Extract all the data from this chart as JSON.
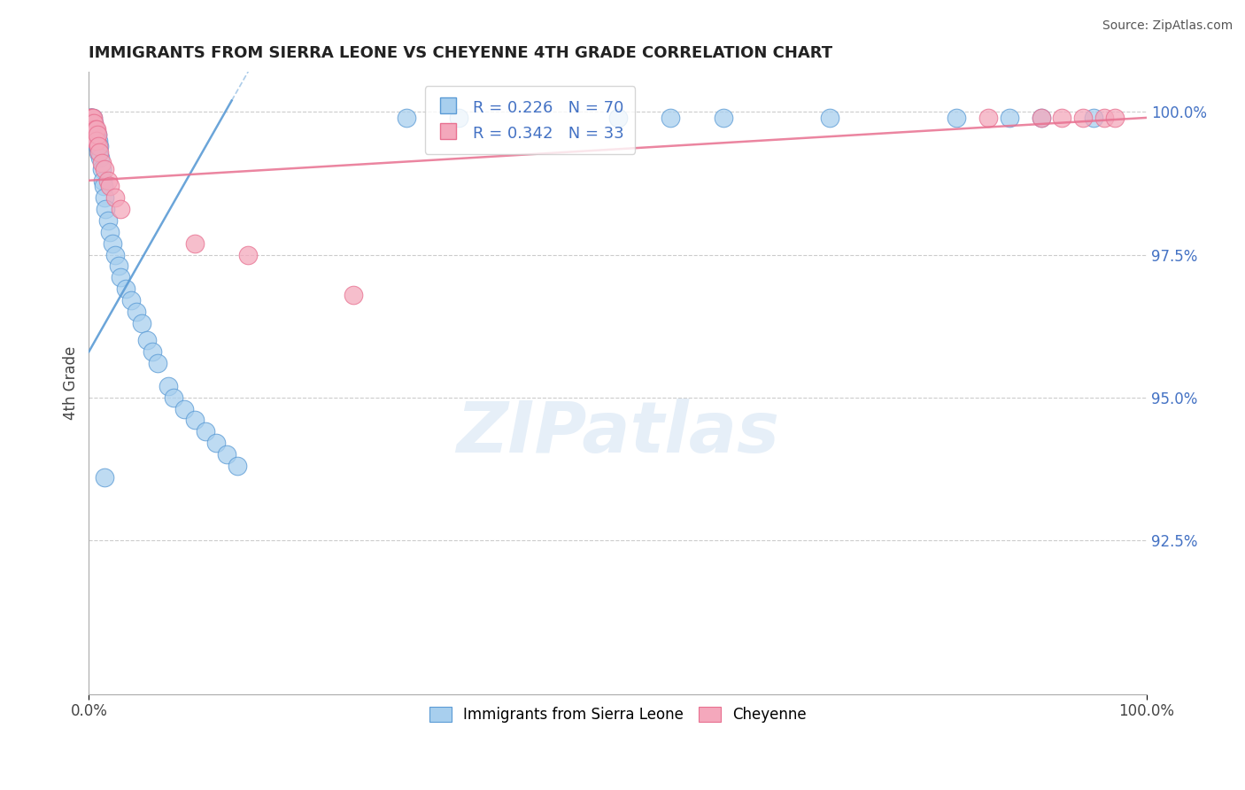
{
  "title": "IMMIGRANTS FROM SIERRA LEONE VS CHEYENNE 4TH GRADE CORRELATION CHART",
  "source": "Source: ZipAtlas.com",
  "ylabel": "4th Grade",
  "legend_label_blue": "Immigrants from Sierra Leone",
  "legend_label_pink": "Cheyenne",
  "R_blue": 0.226,
  "N_blue": 70,
  "R_pink": 0.342,
  "N_pink": 33,
  "xlim": [
    0.0,
    1.0
  ],
  "ylim": [
    0.898,
    1.007
  ],
  "yticks": [
    0.925,
    0.95,
    0.975,
    1.0
  ],
  "ytick_labels": [
    "92.5%",
    "95.0%",
    "97.5%",
    "100.0%"
  ],
  "xticks": [
    0.0,
    1.0
  ],
  "xtick_labels": [
    "0.0%",
    "100.0%"
  ],
  "color_blue": "#A8CFEE",
  "color_pink": "#F4A8BC",
  "edge_blue": "#5B9BD5",
  "edge_pink": "#E87090",
  "trendline_blue_x0": 0.0,
  "trendline_blue_y0": 0.958,
  "trendline_blue_x1": 0.135,
  "trendline_blue_y1": 1.002,
  "trendline_pink_x0": 0.0,
  "trendline_pink_y0": 0.988,
  "trendline_pink_x1": 1.0,
  "trendline_pink_y1": 0.999,
  "blue_x": [
    0.001,
    0.001,
    0.001,
    0.001,
    0.001,
    0.002,
    0.002,
    0.002,
    0.002,
    0.003,
    0.003,
    0.003,
    0.003,
    0.003,
    0.004,
    0.004,
    0.004,
    0.004,
    0.005,
    0.005,
    0.005,
    0.005,
    0.006,
    0.006,
    0.006,
    0.007,
    0.007,
    0.008,
    0.008,
    0.009,
    0.009,
    0.01,
    0.011,
    0.012,
    0.013,
    0.014,
    0.015,
    0.016,
    0.018,
    0.02,
    0.022,
    0.025,
    0.028,
    0.03,
    0.035,
    0.04,
    0.045,
    0.05,
    0.055,
    0.06,
    0.065,
    0.075,
    0.08,
    0.09,
    0.1,
    0.11,
    0.12,
    0.13,
    0.14,
    0.015,
    0.3,
    0.35,
    0.5,
    0.55,
    0.6,
    0.7,
    0.82,
    0.87,
    0.9,
    0.95
  ],
  "blue_y": [
    0.999,
    0.999,
    0.998,
    0.998,
    0.997,
    0.999,
    0.998,
    0.997,
    0.996,
    0.999,
    0.998,
    0.997,
    0.996,
    0.995,
    0.999,
    0.998,
    0.997,
    0.996,
    0.998,
    0.997,
    0.996,
    0.995,
    0.997,
    0.996,
    0.995,
    0.996,
    0.995,
    0.996,
    0.994,
    0.995,
    0.993,
    0.994,
    0.992,
    0.99,
    0.988,
    0.987,
    0.985,
    0.983,
    0.981,
    0.979,
    0.977,
    0.975,
    0.973,
    0.971,
    0.969,
    0.967,
    0.965,
    0.963,
    0.96,
    0.958,
    0.956,
    0.952,
    0.95,
    0.948,
    0.946,
    0.944,
    0.942,
    0.94,
    0.938,
    0.936,
    0.999,
    0.999,
    0.999,
    0.999,
    0.999,
    0.999,
    0.999,
    0.999,
    0.999,
    0.999
  ],
  "pink_x": [
    0.001,
    0.001,
    0.002,
    0.002,
    0.002,
    0.003,
    0.003,
    0.004,
    0.004,
    0.005,
    0.005,
    0.006,
    0.006,
    0.007,
    0.007,
    0.008,
    0.009,
    0.01,
    0.012,
    0.015,
    0.018,
    0.02,
    0.025,
    0.03,
    0.1,
    0.15,
    0.25,
    0.85,
    0.9,
    0.92,
    0.94,
    0.96,
    0.97
  ],
  "pink_y": [
    0.999,
    0.998,
    0.999,
    0.998,
    0.997,
    0.999,
    0.998,
    0.999,
    0.997,
    0.998,
    0.996,
    0.997,
    0.995,
    0.997,
    0.995,
    0.996,
    0.994,
    0.993,
    0.991,
    0.99,
    0.988,
    0.987,
    0.985,
    0.983,
    0.977,
    0.975,
    0.968,
    0.999,
    0.999,
    0.999,
    0.999,
    0.999,
    0.999
  ]
}
